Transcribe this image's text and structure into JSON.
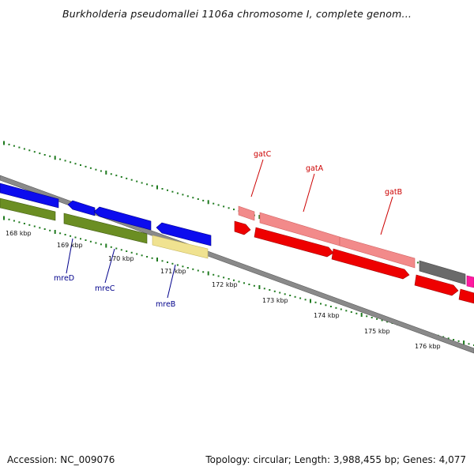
{
  "title": "Burkholderia pseudomallei 1106a chromosome I, complete genom...",
  "accession": "Accession: NC_009076",
  "summary": "Topology: circular; Length: 3,988,455 bp; Genes: 4,077",
  "colors": {
    "backbone": "#8c8c8c",
    "tick": "#1f7a1f",
    "blue": "#0c0cee",
    "olive": "#6b8e23",
    "khaki": "#eee08a",
    "red": "#ee0000",
    "salmon": "#f08080",
    "gray": "#666666",
    "magenta": "#ff1493",
    "label_blue": "#00008b",
    "label_red": "#cc0000"
  },
  "scale_labels": [
    "168 kbp",
    "169 kbp",
    "170 kbp",
    "171 kbp",
    "172 kbp",
    "173 kbp",
    "174 kbp",
    "175 kbp",
    "176 kbp"
  ],
  "gene_labels": [
    {
      "name": "mreD",
      "color": "label_blue"
    },
    {
      "name": "mreC",
      "color": "label_blue"
    },
    {
      "name": "mreB",
      "color": "label_blue"
    },
    {
      "name": "gatC",
      "color": "label_red"
    },
    {
      "name": "gatA",
      "color": "label_red"
    },
    {
      "name": "gatB",
      "color": "label_red"
    }
  ]
}
